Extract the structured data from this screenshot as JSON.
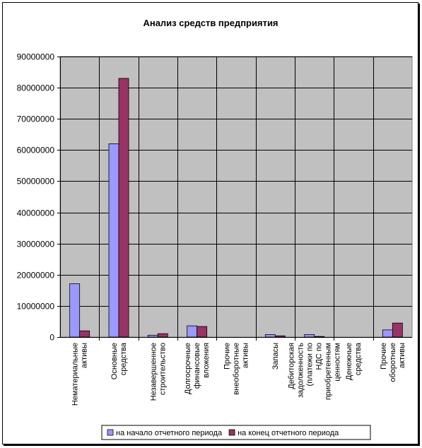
{
  "chart_data": {
    "type": "bar",
    "title": "Анализ средств предприятия",
    "xlabel": "",
    "ylabel": "",
    "ylim": [
      0,
      90000000
    ],
    "yticks": [
      "0",
      "10000000",
      "20000000",
      "30000000",
      "40000000",
      "50000000",
      "60000000",
      "70000000",
      "80000000",
      "90000000"
    ],
    "grid": true,
    "legend_position": "bottom",
    "plot_background": "#c0c0c0",
    "categories": [
      [
        "Нематериальные",
        "активы"
      ],
      [
        "Основные",
        "средства"
      ],
      [
        "Незавершенное",
        "строительство"
      ],
      [
        "Долгосрочные",
        "финансовые",
        "вложения"
      ],
      [
        "Прочие",
        "внеоборотные",
        "активы"
      ],
      [
        "Запасы"
      ],
      [
        "Дебиторская",
        "задолженность",
        "(платежи по",
        "НДС по",
        "приобретенным",
        "ценностям"
      ],
      [
        "Денежные",
        "средства"
      ],
      [
        "Прочие",
        "оборотные",
        "активы"
      ]
    ],
    "series": [
      {
        "name": "на начало отчетного периода",
        "color": "#9999ff",
        "values": [
          17100000,
          62000000,
          600000,
          3600000,
          0,
          800000,
          800000,
          0,
          2300000
        ]
      },
      {
        "name": "на конец отчетного периода",
        "color": "#993366",
        "values": [
          2000000,
          83000000,
          1100000,
          3400000,
          0,
          400000,
          200000,
          0,
          4500000
        ]
      }
    ]
  }
}
